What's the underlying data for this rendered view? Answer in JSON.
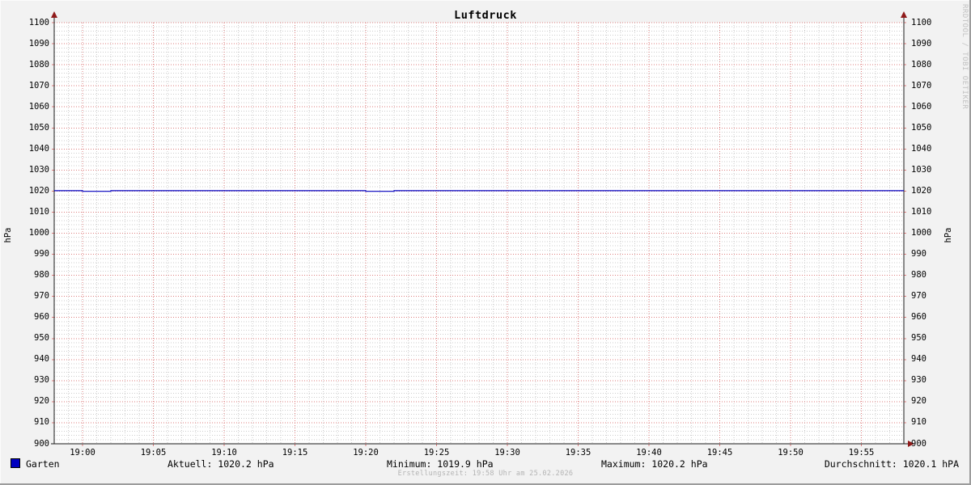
{
  "title": "Luftdruck",
  "watermark": "RRDTOOL / TOBI OETIKER",
  "y_axis": {
    "left_label": "hPa",
    "right_label": "hPa"
  },
  "legend": {
    "series_label": "Garten",
    "current": "Aktuell: 1020.2 hPa",
    "minimum": "Minimum: 1019.9 hPa",
    "maximum": "Maximum: 1020.2 hPa",
    "average": "Durchschnitt: 1020.1 hPA"
  },
  "footer": {
    "creation_text": "Erstellungszeit: 19:58 Uhr am 25.02.2026"
  },
  "colors": {
    "line": "#0000c0",
    "legend_square": "#0000c0",
    "grid_minor": "#cdcdcd",
    "grid_major": "#dd7d7d",
    "axis": "#1a1a1a",
    "arrow": "#8f1a1a",
    "background": "#f2f2f2",
    "plot_bg": "#ffffff",
    "watermark_text": "#c2c2c2",
    "footer_text": "#b4b4b4"
  },
  "chart_data": {
    "type": "line",
    "title": "Luftdruck",
    "xlabel": "",
    "ylabel": "hPa",
    "ylim": [
      900,
      1100
    ],
    "y_major_step": 10,
    "y_minor_step": 2,
    "x_start": "18:58",
    "x_end": "19:58",
    "x_minor_step_min": 1,
    "x_ticks": [
      "19:00",
      "19:05",
      "19:10",
      "19:15",
      "19:20",
      "19:25",
      "19:30",
      "19:35",
      "19:40",
      "19:45",
      "19:50",
      "19:55"
    ],
    "grid": true,
    "legend_position": "bottom",
    "series": [
      {
        "name": "Garten",
        "color": "#0000c0",
        "unit": "hPa",
        "points": [
          [
            "18:58",
            1020.2
          ],
          [
            "19:00",
            1020.2
          ],
          [
            "19:00",
            1019.9
          ],
          [
            "19:02",
            1019.9
          ],
          [
            "19:02",
            1020.2
          ],
          [
            "19:20",
            1020.2
          ],
          [
            "19:20",
            1019.9
          ],
          [
            "19:22",
            1019.9
          ],
          [
            "19:22",
            1020.2
          ],
          [
            "19:58",
            1020.2
          ]
        ]
      }
    ],
    "stats": {
      "aktuell": 1020.2,
      "minimum": 1019.9,
      "maximum": 1020.2,
      "durchschnitt": 1020.1,
      "unit": "hPa"
    }
  }
}
